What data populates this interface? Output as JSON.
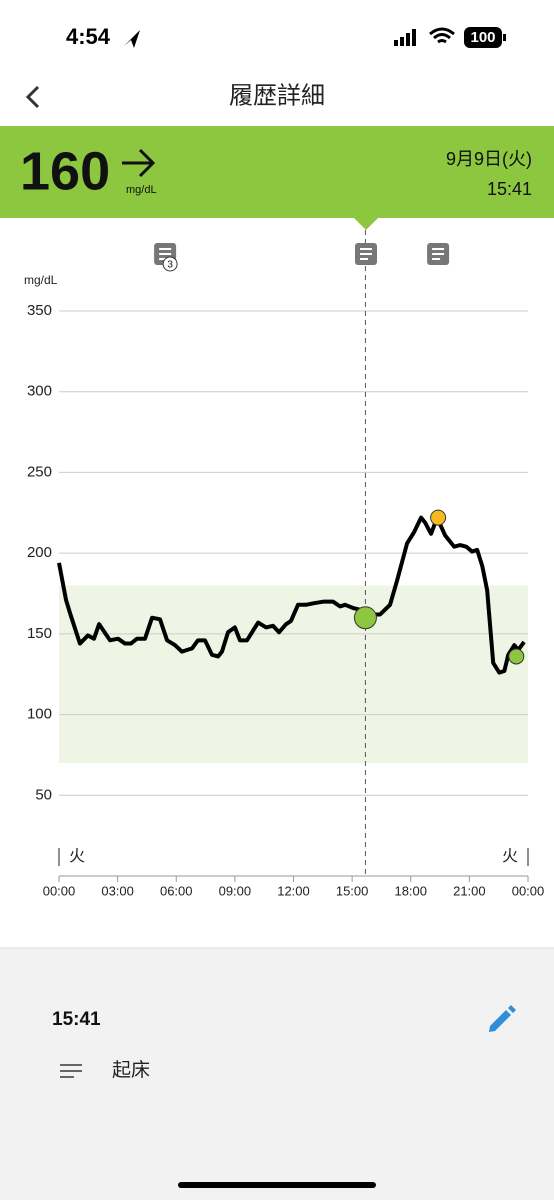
{
  "status_bar": {
    "time": "4:54",
    "battery": "100"
  },
  "header": {
    "title": "履歴詳細"
  },
  "reading": {
    "value": "160",
    "unit": "mg/dL",
    "date": "9月9日(火)",
    "time": "15:41"
  },
  "chart_data": {
    "type": "line",
    "y_axis_label": "mg/dL",
    "x": [
      0,
      0.36,
      0.56,
      1.07,
      1.48,
      1.79,
      2.05,
      2.61,
      3.02,
      3.38,
      3.68,
      3.99,
      4.4,
      4.76,
      5.17,
      5.53,
      5.94,
      6.29,
      6.81,
      7.11,
      7.47,
      7.83,
      8.14,
      8.34,
      8.65,
      9.0,
      9.26,
      9.62,
      9.88,
      10.19,
      10.6,
      10.95,
      11.26,
      11.62,
      11.87,
      12.23,
      12.64,
      13.05,
      13.56,
      14.02,
      14.38,
      14.64,
      15.05,
      15.4,
      15.66,
      16.02,
      16.43,
      16.94,
      17.3,
      17.81,
      18.17,
      18.53,
      18.73,
      19.04,
      19.35,
      19.76,
      20.22,
      20.53,
      20.84,
      21.14,
      21.4,
      21.66,
      21.91,
      22.22,
      22.53,
      22.79,
      22.99,
      23.3,
      23.5,
      23.8
    ],
    "series": [
      {
        "color": "#000000",
        "values": [
          194,
          171,
          163,
          144,
          149,
          147,
          156,
          146,
          147,
          144,
          144,
          147,
          147,
          160,
          159,
          146,
          143,
          139,
          141,
          146,
          146,
          137,
          136,
          139,
          151,
          154,
          146,
          146,
          151,
          157,
          154,
          155,
          151,
          156,
          158,
          168,
          168,
          169,
          170,
          170,
          167,
          168,
          166,
          165,
          160,
          162,
          162,
          168,
          183,
          206,
          213,
          222,
          219,
          212,
          222,
          211,
          204,
          205,
          204,
          201,
          202,
          192,
          177,
          132,
          126,
          127,
          137,
          143,
          140,
          145
        ]
      }
    ],
    "points": [
      {
        "x": 15.68,
        "value": 160,
        "color": "#8dc63f"
      },
      {
        "x": 19.4,
        "value": 222,
        "color": "#f6b91f"
      },
      {
        "x": 23.4,
        "value": 136,
        "color": "#8dc63f"
      }
    ],
    "target_range": [
      70,
      180
    ],
    "target_color": "#eef5e4",
    "xlim": [
      0,
      24
    ],
    "ylim": [
      0,
      350
    ],
    "yticks": [
      50,
      100,
      150,
      200,
      250,
      300,
      350
    ],
    "xticks": [
      {
        "value": 0,
        "label": "00:00"
      },
      {
        "value": 3,
        "label": "03:00"
      },
      {
        "value": 6,
        "label": "06:00"
      },
      {
        "value": 9,
        "label": "09:00"
      },
      {
        "value": 12,
        "label": "12:00"
      },
      {
        "value": 15,
        "label": "15:00"
      },
      {
        "value": 18,
        "label": "18:00"
      },
      {
        "value": 21,
        "label": "21:00"
      },
      {
        "value": 24,
        "label": "00:00"
      }
    ],
    "day_labels": [
      "火",
      "火"
    ],
    "cursor_x": 15.68,
    "notes": [
      {
        "x": 5.43,
        "count": 3
      },
      {
        "x": 15.71
      },
      {
        "x": 19.4
      }
    ],
    "grid": true
  },
  "detail": {
    "time": "15:41",
    "note": "起床"
  }
}
